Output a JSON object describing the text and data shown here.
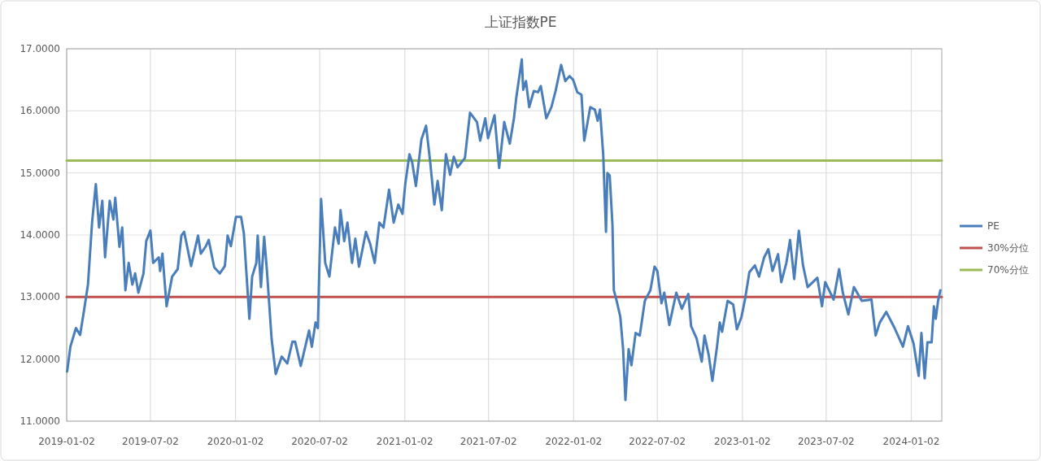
{
  "chart_data": {
    "type": "line",
    "title": "上证指数PE",
    "xlim": [
      "2019-01-02",
      "2024-03-08"
    ],
    "xticks": [
      "2019-01-02",
      "2019-07-02",
      "2020-01-02",
      "2020-07-02",
      "2021-01-02",
      "2021-07-02",
      "2022-01-02",
      "2022-07-02",
      "2023-01-02",
      "2023-07-02",
      "2024-01-02"
    ],
    "ylim": [
      11,
      17
    ],
    "yticks": [
      {
        "value": 11,
        "label": "11.0000"
      },
      {
        "value": 12,
        "label": "12.0000"
      },
      {
        "value": 13,
        "label": "13.0000"
      },
      {
        "value": 14,
        "label": "14.0000"
      },
      {
        "value": 15,
        "label": "15.0000"
      },
      {
        "value": 16,
        "label": "16.0000"
      },
      {
        "value": 17,
        "label": "17.0000"
      }
    ],
    "grid": true,
    "legend": "right",
    "marker": "none",
    "line_style": "solid",
    "series": [
      {
        "name": "PE",
        "color": "#4a7ebb",
        "x": [
          "2019-01-03",
          "2019-01-10",
          "2019-01-22",
          "2019-01-31",
          "2019-02-08",
          "2019-02-17",
          "2019-02-26",
          "2019-03-06",
          "2019-03-13",
          "2019-03-20",
          "2019-03-26",
          "2019-04-05",
          "2019-04-13",
          "2019-04-17",
          "2019-04-26",
          "2019-05-02",
          "2019-05-09",
          "2019-05-16",
          "2019-05-24",
          "2019-05-30",
          "2019-06-06",
          "2019-06-17",
          "2019-06-23",
          "2019-07-02",
          "2019-07-08",
          "2019-07-20",
          "2019-07-23",
          "2019-07-28",
          "2019-08-06",
          "2019-08-18",
          "2019-08-30",
          "2019-09-07",
          "2019-09-13",
          "2019-09-28",
          "2019-10-13",
          "2019-10-19",
          "2019-10-30",
          "2019-11-05",
          "2019-11-17",
          "2019-11-29",
          "2019-12-10",
          "2019-12-16",
          "2019-12-23",
          "2020-01-03",
          "2020-01-14",
          "2020-01-20",
          "2020-02-01",
          "2020-02-07",
          "2020-02-16",
          "2020-02-19",
          "2020-02-26",
          "2020-03-04",
          "2020-03-10",
          "2020-03-20",
          "2020-03-29",
          "2020-04-11",
          "2020-04-23",
          "2020-05-04",
          "2020-05-10",
          "2020-05-22",
          "2020-06-09",
          "2020-06-15",
          "2020-06-23",
          "2020-06-28",
          "2020-07-05",
          "2020-07-14",
          "2020-07-23",
          "2020-08-04",
          "2020-08-12",
          "2020-08-16",
          "2020-08-24",
          "2020-08-31",
          "2020-09-10",
          "2020-09-17",
          "2020-09-25",
          "2020-10-10",
          "2020-10-19",
          "2020-10-29",
          "2020-11-08",
          "2020-11-17",
          "2020-11-29",
          "2020-12-09",
          "2020-12-19",
          "2020-12-28",
          "2021-01-03",
          "2021-01-12",
          "2021-01-18",
          "2021-01-26",
          "2021-02-07",
          "2021-02-17",
          "2021-02-26",
          "2021-03-07",
          "2021-03-14",
          "2021-03-23",
          "2021-04-01",
          "2021-04-10",
          "2021-04-18",
          "2021-04-26",
          "2021-05-12",
          "2021-05-23",
          "2021-06-07",
          "2021-06-14",
          "2021-06-25",
          "2021-07-01",
          "2021-07-15",
          "2021-07-25",
          "2021-08-05",
          "2021-08-17",
          "2021-08-26",
          "2021-08-31",
          "2021-09-12",
          "2021-09-15",
          "2021-09-21",
          "2021-09-28",
          "2021-10-08",
          "2021-10-17",
          "2021-10-23",
          "2021-11-04",
          "2021-11-15",
          "2021-11-24",
          "2021-12-06",
          "2021-12-15",
          "2021-12-24",
          "2022-01-01",
          "2022-01-10",
          "2022-01-19",
          "2022-01-25",
          "2022-02-07",
          "2022-02-17",
          "2022-02-23",
          "2022-02-28",
          "2022-03-07",
          "2022-03-13",
          "2022-03-16",
          "2022-03-21",
          "2022-03-27",
          "2022-03-30",
          "2022-04-05",
          "2022-04-13",
          "2022-04-19",
          "2022-04-24",
          "2022-05-01",
          "2022-05-07",
          "2022-05-16",
          "2022-05-25",
          "2022-06-05",
          "2022-06-17",
          "2022-06-26",
          "2022-07-02",
          "2022-07-11",
          "2022-07-17",
          "2022-07-28",
          "2022-08-12",
          "2022-08-24",
          "2022-09-07",
          "2022-09-13",
          "2022-09-25",
          "2022-10-06",
          "2022-10-12",
          "2022-10-21",
          "2022-10-29",
          "2022-11-08",
          "2022-11-14",
          "2022-11-19",
          "2022-12-01",
          "2022-12-13",
          "2022-12-21",
          "2022-12-31",
          "2023-01-08",
          "2023-01-17",
          "2023-01-29",
          "2023-02-07",
          "2023-02-18",
          "2023-02-27",
          "2023-03-08",
          "2023-03-20",
          "2023-03-27",
          "2023-04-07",
          "2023-04-15",
          "2023-04-24",
          "2023-05-04",
          "2023-05-13",
          "2023-05-23",
          "2023-06-13",
          "2023-06-23",
          "2023-06-30",
          "2023-07-18",
          "2023-07-30",
          "2023-08-07",
          "2023-08-19",
          "2023-08-31",
          "2023-09-17",
          "2023-10-08",
          "2023-10-17",
          "2023-10-26",
          "2023-11-09",
          "2023-11-27",
          "2023-12-15",
          "2023-12-26",
          "2024-01-07",
          "2024-01-18",
          "2024-01-24",
          "2024-01-31",
          "2024-02-06",
          "2024-02-15",
          "2024-02-20",
          "2024-02-24",
          "2024-02-29",
          "2024-03-05"
        ],
        "values": [
          11.8,
          12.2,
          12.5,
          12.39,
          12.76,
          13.2,
          14.21,
          14.82,
          14.12,
          14.55,
          13.64,
          14.55,
          14.25,
          14.6,
          13.81,
          14.12,
          13.11,
          13.55,
          13.2,
          13.38,
          13.07,
          13.38,
          13.9,
          14.07,
          13.55,
          13.64,
          13.42,
          13.7,
          12.85,
          13.33,
          13.45,
          13.99,
          14.05,
          13.5,
          13.99,
          13.7,
          13.82,
          13.92,
          13.48,
          13.38,
          13.5,
          13.99,
          13.82,
          14.29,
          14.29,
          14.03,
          12.65,
          13.33,
          13.55,
          13.99,
          13.16,
          13.97,
          13.42,
          12.33,
          11.76,
          12.04,
          11.93,
          12.28,
          12.28,
          11.89,
          12.46,
          12.2,
          12.59,
          12.5,
          14.58,
          13.55,
          13.33,
          14.12,
          13.86,
          14.4,
          13.9,
          14.2,
          13.55,
          13.94,
          13.49,
          14.05,
          13.86,
          13.55,
          14.2,
          14.12,
          14.73,
          14.2,
          14.49,
          14.34,
          14.82,
          15.3,
          15.17,
          14.79,
          15.54,
          15.76,
          15.17,
          14.49,
          14.87,
          14.4,
          15.3,
          14.97,
          15.26,
          15.09,
          15.24,
          15.97,
          15.82,
          15.52,
          15.88,
          15.56,
          15.93,
          15.08,
          15.82,
          15.47,
          15.88,
          16.21,
          16.83,
          16.34,
          16.48,
          16.06,
          16.32,
          16.3,
          16.4,
          15.88,
          16.06,
          16.32,
          16.74,
          16.48,
          16.56,
          16.5,
          16.3,
          16.26,
          15.52,
          16.06,
          16.02,
          15.84,
          16.02,
          15.3,
          14.05,
          15.0,
          14.96,
          14.16,
          13.11,
          12.94,
          12.68,
          12.16,
          11.34,
          12.16,
          11.9,
          12.42,
          12.38,
          12.94,
          13.11,
          13.49,
          13.42,
          12.9,
          13.07,
          12.55,
          13.07,
          12.81,
          13.05,
          12.53,
          12.33,
          11.96,
          12.38,
          12.07,
          11.65,
          12.2,
          12.59,
          12.44,
          12.94,
          12.88,
          12.48,
          12.68,
          12.98,
          13.4,
          13.51,
          13.33,
          13.64,
          13.77,
          13.42,
          13.69,
          13.24,
          13.55,
          13.92,
          13.29,
          14.07,
          13.51,
          13.16,
          13.31,
          12.85,
          13.24,
          12.96,
          13.45,
          13.07,
          12.72,
          13.16,
          12.94,
          12.96,
          12.38,
          12.59,
          12.76,
          12.5,
          12.2,
          12.53,
          12.25,
          11.73,
          12.42,
          11.69,
          12.27,
          12.27,
          12.85,
          12.65,
          12.94,
          13.11
        ]
      },
      {
        "name": "30%分位",
        "color": "#c0504d",
        "x": [
          "2019-01-02",
          "2024-03-08"
        ],
        "values": [
          13,
          13
        ]
      },
      {
        "name": "70%分位",
        "color": "#9bbb59",
        "x": [
          "2019-01-02",
          "2024-03-08"
        ],
        "values": [
          15.2,
          15.2
        ]
      }
    ]
  }
}
